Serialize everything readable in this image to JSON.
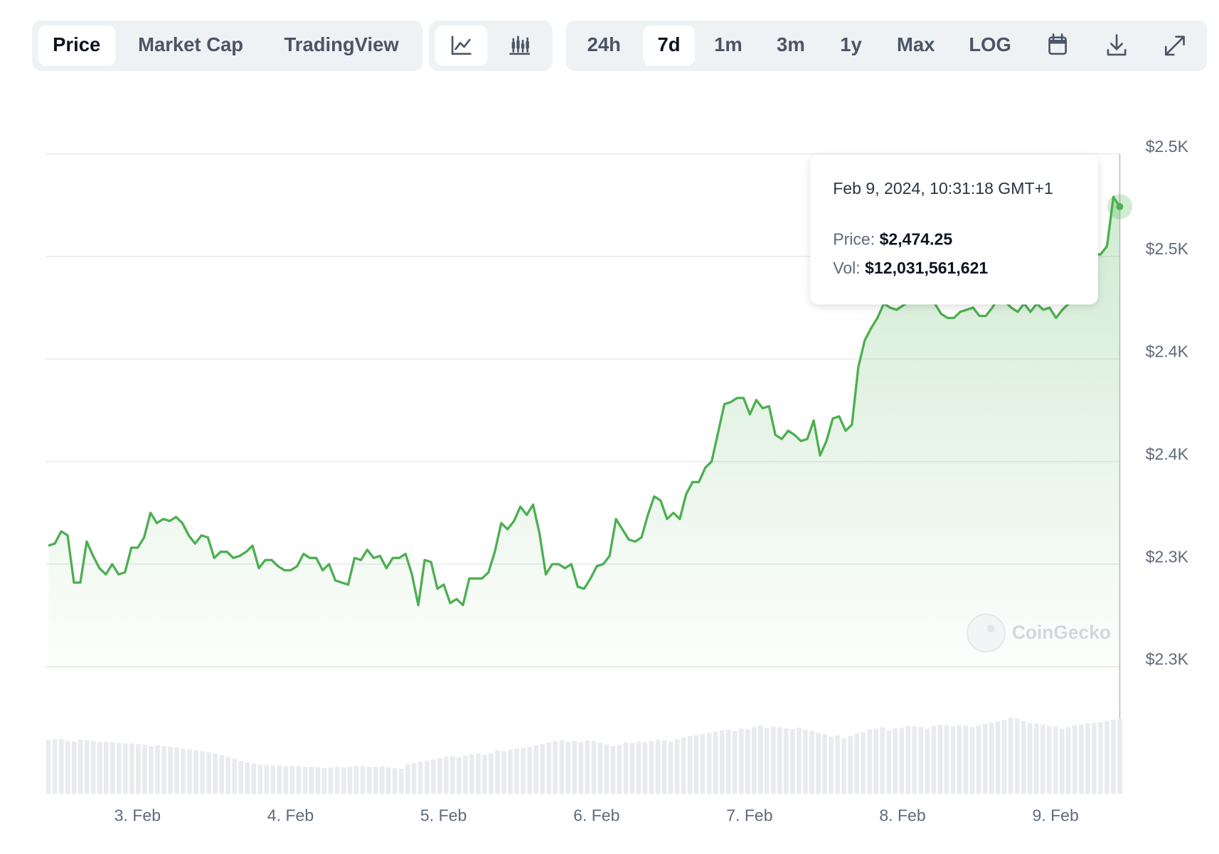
{
  "toolbar": {
    "tabs": [
      "Price",
      "Market Cap",
      "TradingView"
    ],
    "ranges": [
      "24h",
      "7d",
      "1m",
      "3m",
      "1y",
      "Max",
      "LOG"
    ]
  },
  "chart_data": {
    "type": "line",
    "color": "#4caf50",
    "values": [
      2309,
      2310,
      2316,
      2314,
      2291,
      2291,
      2311,
      2304,
      2298,
      2295,
      2300,
      2295,
      2296,
      2308,
      2308,
      2313,
      2325,
      2320,
      2322,
      2321,
      2323,
      2320,
      2314,
      2310,
      2314,
      2313,
      2303,
      2306,
      2306,
      2303,
      2304,
      2306,
      2309,
      2298,
      2302,
      2302,
      2299,
      2297,
      2297,
      2299,
      2305,
      2303,
      2303,
      2297,
      2300,
      2292,
      2291,
      2290,
      2303,
      2302,
      2307,
      2303,
      2304,
      2298,
      2303,
      2303,
      2305,
      2295,
      2280,
      2302,
      2301,
      2288,
      2290,
      2281,
      2283,
      2280,
      2293,
      2293,
      2293,
      2296,
      2306,
      2320,
      2317,
      2321,
      2328,
      2324,
      2329,
      2315,
      2295,
      2300,
      2300,
      2298,
      2300,
      2289,
      2288,
      2293,
      2299,
      2300,
      2304,
      2322,
      2317,
      2312,
      2311,
      2313,
      2324,
      2333,
      2331,
      2322,
      2325,
      2322,
      2334,
      2340,
      2340,
      2347,
      2350,
      2364,
      2378,
      2379,
      2381,
      2381,
      2373,
      2380,
      2376,
      2377,
      2363,
      2361,
      2365,
      2363,
      2360,
      2361,
      2370,
      2353,
      2360,
      2371,
      2372,
      2365,
      2368,
      2396,
      2409,
      2415,
      2420,
      2427,
      2425,
      2424,
      2426,
      2428,
      2430,
      2429,
      2428,
      2427,
      2422,
      2420,
      2420,
      2423,
      2424,
      2425,
      2421,
      2421,
      2425,
      2430,
      2428,
      2425,
      2423,
      2427,
      2423,
      2427,
      2424,
      2425,
      2420,
      2424,
      2427,
      2430,
      2433,
      2444,
      2451,
      2451,
      2455,
      2479,
      2474.25
    ],
    "volume": {
      "color": "#e9ebef",
      "values": [
        8600000000.0,
        8700000000.0,
        8700000000.0,
        8400000000.0,
        8300000000.0,
        8600000000.0,
        8500000000.0,
        8400000000.0,
        8200000000.0,
        8300000000.0,
        8200000000.0,
        8100000000.0,
        8000000000.0,
        8000000000.0,
        7900000000.0,
        7800000000.0,
        7600000000.0,
        7700000000.0,
        7600000000.0,
        7500000000.0,
        7400000000.0,
        7200000000.0,
        7100000000.0,
        6900000000.0,
        6800000000.0,
        6600000000.0,
        6400000000.0,
        6200000000.0,
        5900000000.0,
        5600000000.0,
        5200000000.0,
        5000000000.0,
        4800000000.0,
        4600000000.0,
        4600000000.0,
        4500000000.0,
        4500000000.0,
        4400000000.0,
        4400000000.0,
        4400000000.0,
        4300000000.0,
        4300000000.0,
        4200000000.0,
        4100000000.0,
        4200000000.0,
        4300000000.0,
        4200000000.0,
        4300000000.0,
        4400000000.0,
        4400000000.0,
        4300000000.0,
        4300000000.0,
        4400000000.0,
        4200000000.0,
        4100000000.0,
        4000000000.0,
        4700000000.0,
        4900000000.0,
        5100000000.0,
        5300000000.0,
        5500000000.0,
        5700000000.0,
        5900000000.0,
        6000000000.0,
        5800000000.0,
        6100000000.0,
        6300000000.0,
        6400000000.0,
        6200000000.0,
        6500000000.0,
        6900000000.0,
        6800000000.0,
        7000000000.0,
        7200000000.0,
        7300000000.0,
        7500000000.0,
        7700000000.0,
        7900000000.0,
        8200000000.0,
        8400000000.0,
        8500000000.0,
        8300000000.0,
        8400000000.0,
        8200000000.0,
        8500000000.0,
        8400000000.0,
        8100000000.0,
        7900000000.0,
        7600000000.0,
        7800000000.0,
        8200000000.0,
        8100000000.0,
        8300000000.0,
        8200000000.0,
        8400000000.0,
        8600000000.0,
        8500000000.0,
        8300000000.0,
        8700000000.0,
        9000000000.0,
        9200000000.0,
        9300000000.0,
        9500000000.0,
        9700000000.0,
        9900000000.0,
        10100000000.0,
        10200000000.0,
        10000000000.0,
        10400000000.0,
        10300000000.0,
        10600000000.0,
        10900000000.0,
        10500000000.0,
        10700000000.0,
        10600000000.0,
        10400000000.0,
        10300000000.0,
        10500000000.0,
        10200000000.0,
        10000000000.0,
        9700000000.0,
        9500000000.0,
        9100000000.0,
        9300000000.0,
        8800000000.0,
        9200000000.0,
        9600000000.0,
        9800000000.0,
        10200000000.0,
        10400000000.0,
        10600000000.0,
        10100000000.0,
        10400000000.0,
        10500000000.0,
        10800000000.0,
        10700000000.0,
        10600000000.0,
        10400000000.0,
        10800000000.0,
        11000000000.0,
        10900000000.0,
        10700000000.0,
        10900000000.0,
        10800000000.0,
        10600000000.0,
        10900000000.0,
        11100000000.0,
        11300000000.0,
        11500000000.0,
        11700000000.0,
        12100000000.0,
        12000000000.0,
        11600000000.0,
        11300000000.0,
        11200000000.0,
        11000000000.0,
        10800000000.0,
        10700000000.0,
        10400000000.0,
        10600000000.0,
        10900000000.0,
        11000000000.0,
        11200000000.0,
        11300000000.0,
        11400000000.0,
        11600000000.0,
        11800000000.0,
        12031561621
      ]
    },
    "ylim": [
      2220,
      2530
    ],
    "yticks": [
      {
        "value": 2500,
        "label": "$2.5K"
      },
      {
        "value": 2450,
        "label": "$2.5K"
      },
      {
        "value": 2400,
        "label": "$2.4K"
      },
      {
        "value": 2350,
        "label": "$2.4K"
      },
      {
        "value": 2300,
        "label": "$2.3K"
      },
      {
        "value": 2250,
        "label": "$2.3K"
      }
    ],
    "xticks": [
      "3. Feb",
      "4. Feb",
      "5. Feb",
      "6. Feb",
      "7. Feb",
      "8. Feb",
      "9. Feb"
    ],
    "grid": true,
    "tooltip": {
      "date": "Feb 9, 2024, 10:31:18 GMT+1",
      "price_label": "Price:",
      "price": "$2,474.25",
      "vol_label": "Vol:",
      "vol": "$12,031,561,621"
    },
    "watermark": "CoinGecko"
  }
}
